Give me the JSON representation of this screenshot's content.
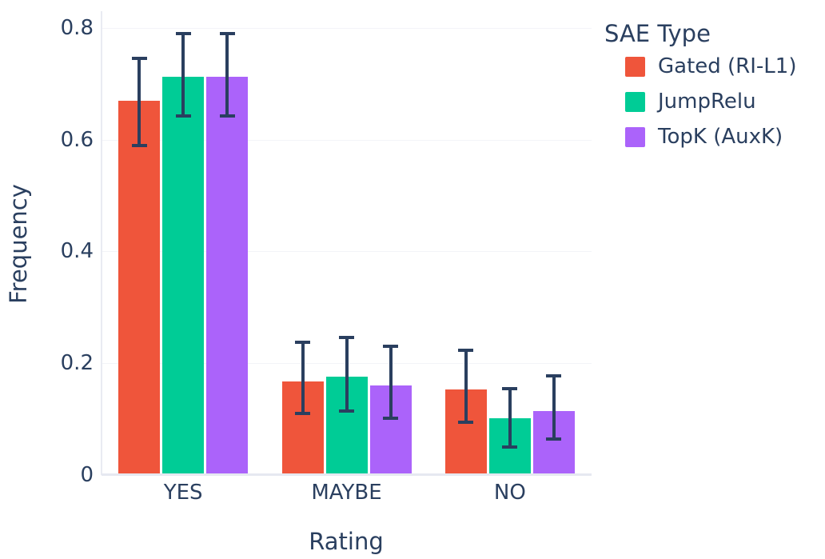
{
  "chart_data": {
    "type": "bar",
    "title": "",
    "xlabel": "Rating",
    "ylabel": "Frequency",
    "legend_title": "SAE Type",
    "legend_position": "top-right",
    "categories": [
      "YES",
      "MAYBE",
      "NO"
    ],
    "series": [
      {
        "name": "Gated (RI-L1)",
        "color": "#EF553B",
        "values": [
          0.67,
          0.168,
          0.153
        ],
        "error_low": [
          0.59,
          0.11,
          0.095
        ],
        "error_high": [
          0.746,
          0.237,
          0.223
        ]
      },
      {
        "name": "JumpRelu",
        "color": "#00CC96",
        "values": [
          0.713,
          0.176,
          0.101
        ],
        "error_low": [
          0.642,
          0.115,
          0.05
        ],
        "error_high": [
          0.79,
          0.246,
          0.154
        ]
      },
      {
        "name": "TopK (AuxK)",
        "color": "#AB63FA",
        "values": [
          0.713,
          0.16,
          0.115
        ],
        "error_low": [
          0.643,
          0.102,
          0.065
        ],
        "error_high": [
          0.79,
          0.23,
          0.178
        ]
      }
    ],
    "ylim": [
      0,
      0.83
    ],
    "yticks": [
      0,
      0.2,
      0.4,
      0.6,
      0.8
    ],
    "grid": true,
    "error_bar_color": "#2a3f5f",
    "text_color": "#2a3f5f",
    "background_color": "#ffffff"
  }
}
